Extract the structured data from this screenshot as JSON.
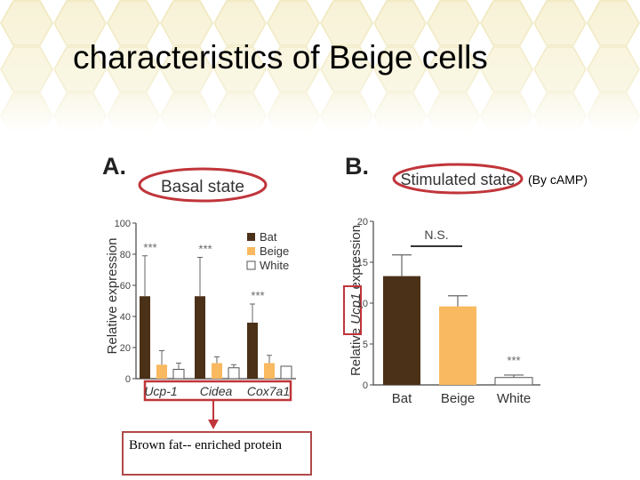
{
  "slide": {
    "title": "characteristics of Beige cells",
    "annotation_camp": "(By cAMP)",
    "note_text": "Brown fat-- enriched protein"
  },
  "colors": {
    "bat": "#4a3118",
    "beige": "#f8b960",
    "white": "#ffffff",
    "highlight": "#c0353a",
    "hex_bg": "#f3edc8"
  },
  "chart_data": [
    {
      "type": "bar",
      "panel_label": "A.",
      "title": "Basal state",
      "xlabel": "",
      "ylabel": "Relative expression",
      "ylim": [
        0,
        100
      ],
      "yticks": [
        "0",
        "20",
        "40",
        "60",
        "80",
        "100"
      ],
      "categories": [
        "Ucp-1",
        "Cidea",
        "Cox7a1"
      ],
      "series": [
        {
          "name": "Bat",
          "values": [
            53,
            53,
            36
          ],
          "errors": [
            26,
            25,
            12
          ]
        },
        {
          "name": "Beige",
          "values": [
            9,
            10,
            10
          ],
          "errors": [
            9,
            4,
            5
          ]
        },
        {
          "name": "White",
          "values": [
            6,
            7,
            8
          ],
          "errors": [
            4,
            2,
            0
          ]
        }
      ],
      "annotations": [
        "***",
        "***",
        "***"
      ],
      "legend_position": "top-right"
    },
    {
      "type": "bar",
      "panel_label": "B.",
      "title": "Stimulated state",
      "xlabel": "",
      "ylabel_parts": [
        "Relative ",
        "Ucp1",
        " expression"
      ],
      "ylim": [
        0,
        20
      ],
      "yticks": [
        "0",
        "5",
        "10",
        "15",
        "20"
      ],
      "categories": [
        "Bat",
        "Beige",
        "White"
      ],
      "values": [
        13.3,
        9.6,
        0.9
      ],
      "errors": [
        2.6,
        1.3,
        0.3
      ],
      "annotations": [
        "N.S.",
        "***"
      ]
    }
  ]
}
